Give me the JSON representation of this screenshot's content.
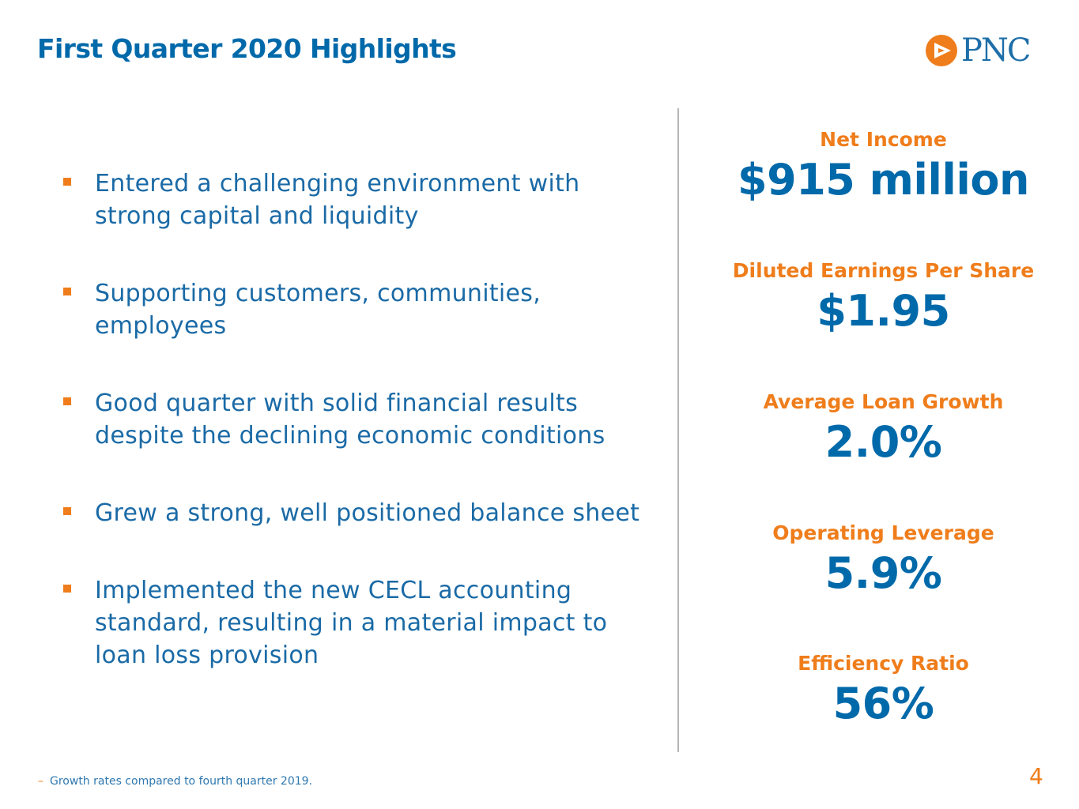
{
  "header": {
    "title": "First Quarter 2020 Highlights",
    "logo_text": "PNC",
    "logo_icon": "pnc-triangle-logo"
  },
  "bullets": [
    {
      "text": "Entered a challenging environment with\nstrong capital and liquidity"
    },
    {
      "text": "Supporting customers, communities,\nemployees"
    },
    {
      "text": "Good quarter with solid financial results\ndespite the declining economic conditions"
    },
    {
      "text": "Grew a strong, well positioned balance sheet"
    },
    {
      "text": "Implemented the new CECL accounting\nstandard, resulting in a material impact to\nloan loss provision"
    }
  ],
  "metrics": [
    {
      "label": "Net Income",
      "value": "$915 million"
    },
    {
      "label": "Diluted Earnings Per Share",
      "value": "$1.95"
    },
    {
      "label": "Average Loan Growth",
      "value": "2.0%"
    },
    {
      "label": "Operating Leverage",
      "value": "5.9%"
    },
    {
      "label": "Efficiency Ratio",
      "value": "56%"
    }
  ],
  "footer": {
    "dash": "–",
    "footnote": "Growth rates compared to fourth quarter 2019.",
    "page_number": "4"
  },
  "colors": {
    "brand_blue": "#0069aa",
    "accent_orange": "#ef7d1b",
    "divider_gray": "#b5b5b5"
  }
}
